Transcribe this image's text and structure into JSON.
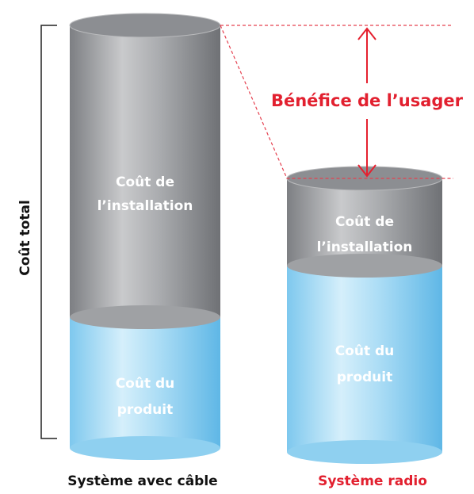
{
  "annotations": {
    "total_cost": "Coût total",
    "user_benefit": "Bénéfice de l’usager"
  },
  "columns": [
    {
      "label": "Système avec câble",
      "installation": [
        "Coût de",
        "l’installation"
      ],
      "product": [
        "Coût du",
        "produit"
      ]
    },
    {
      "label": "Système radio",
      "installation": [
        "Coût de",
        "l’installation"
      ],
      "product": [
        "Coût du",
        "produit"
      ]
    }
  ]
}
